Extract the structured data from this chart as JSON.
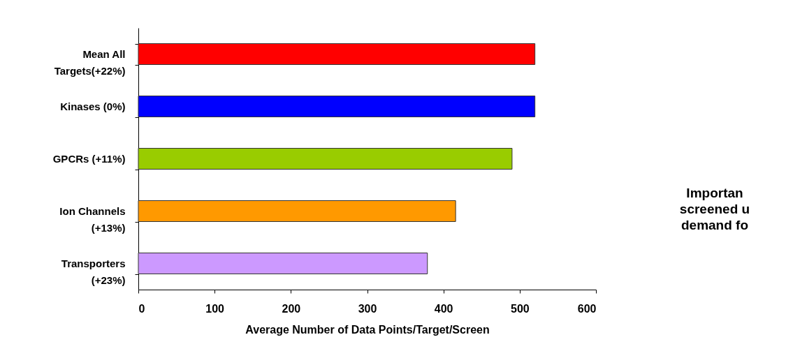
{
  "chart_data": {
    "type": "bar",
    "orientation": "horizontal",
    "xlabel": "Average Number of Data Points/Target/Screen",
    "categories": [
      "Mean All\nTargets(+22%)",
      "Kinases (0%)",
      "GPCRs (+11%)",
      "Ion Channels\n(+13%)",
      "Transporters\n(+23%)"
    ],
    "values": [
      520,
      520,
      490,
      416,
      379
    ],
    "colors": [
      "#ff0000",
      "#0000ff",
      "#99cc00",
      "#ff9900",
      "#cc99ff"
    ],
    "xlim": [
      0,
      600
    ],
    "xticks": [
      0,
      100,
      200,
      300,
      400,
      500,
      600
    ],
    "grid": false,
    "annotations": [
      "Importan\nscreened u\ndemand fo"
    ]
  }
}
